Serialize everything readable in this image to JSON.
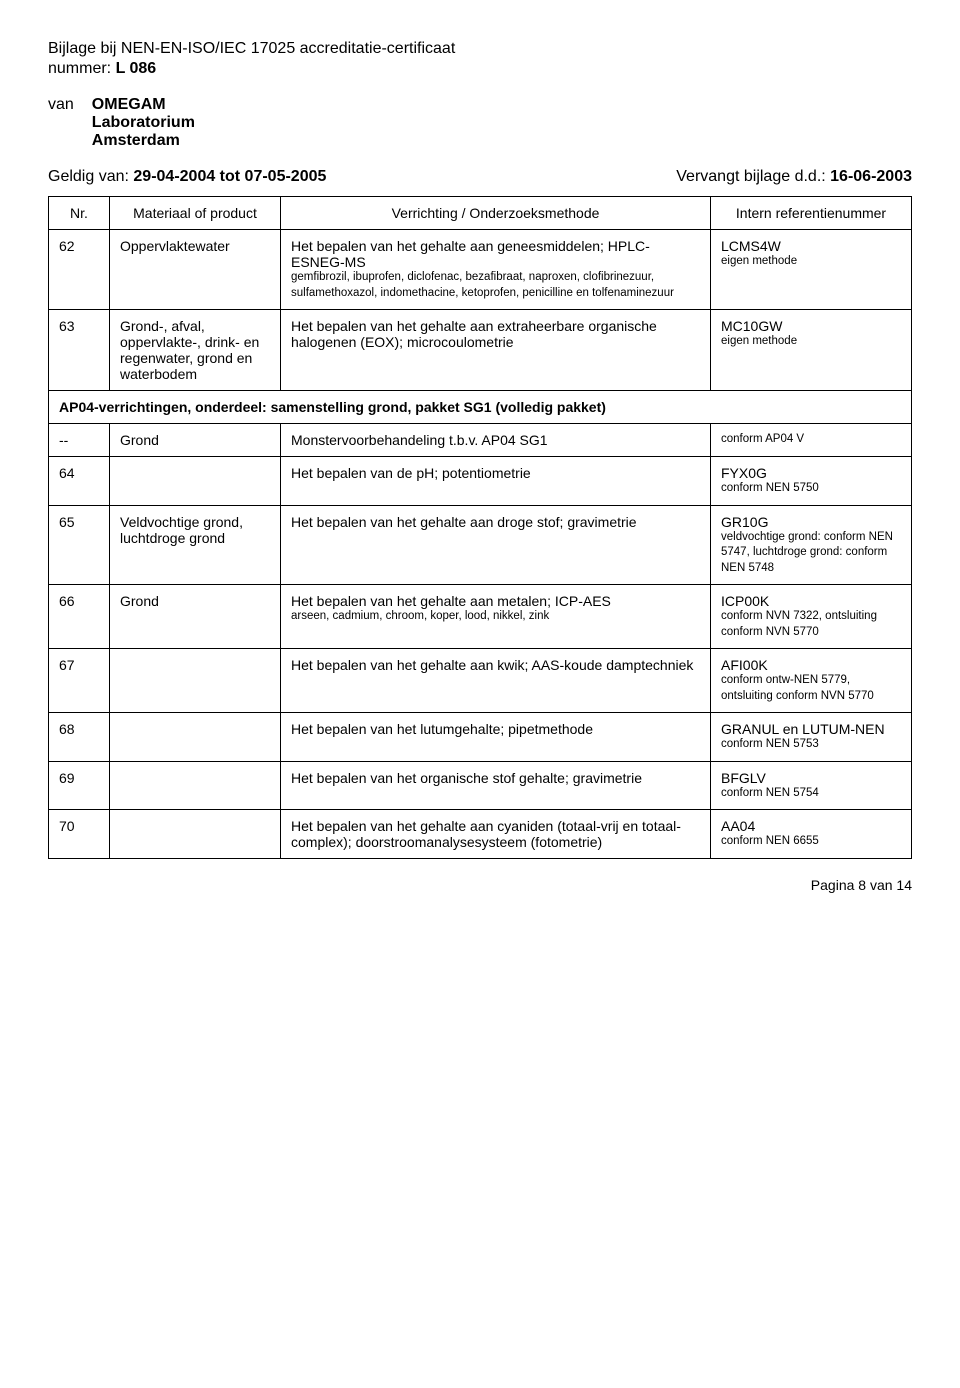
{
  "header": {
    "title": "Bijlage bij NEN-EN-ISO/IEC 17025 accreditatie-certificaat",
    "number_label": "nummer: ",
    "number_value": "L 086",
    "van_label": "van",
    "org_name": "OMEGAM",
    "org_line2": "Laboratorium",
    "org_line3": "Amsterdam",
    "valid_label": "Geldig van: ",
    "valid_value": "29-04-2004 tot 07-05-2005",
    "supersedes_label": "Vervangt bijlage d.d.: ",
    "supersedes_value": "16-06-2003"
  },
  "table": {
    "head": {
      "nr": "Nr.",
      "material": "Materiaal of product",
      "method": "Verrichting / Onderzoeksmethode",
      "ref": "Intern referentienummer"
    },
    "rows": {
      "r62": {
        "nr": "62",
        "material": "Oppervlaktewater",
        "method_main": "Het bepalen van het gehalte aan geneesmiddelen; HPLC-ESNEG-MS",
        "method_small": "gemfibrozil, ibuprofen, diclofenac, bezafibraat, naproxen, clofibrinezuur, sulfamethoxazol, indomethacine, ketoprofen, penicilline en tolfenaminezuur",
        "ref_main": "LCMS4W",
        "ref_small": "eigen methode"
      },
      "r63": {
        "nr": "63",
        "material": "Grond-, afval, oppervlakte-, drink- en regenwater, grond en waterbodem",
        "method_main": "Het bepalen van het gehalte aan extraheerbare organische halogenen (EOX); microcoulometrie",
        "ref_main": "MC10GW",
        "ref_small": "eigen methode"
      },
      "section": {
        "text": "AP04-verrichtingen, onderdeel: samenstelling grond, pakket SG1 (volledig pakket)"
      },
      "rDash": {
        "nr": "--",
        "material": "Grond",
        "method_main": "Monstervoorbehandeling t.b.v. AP04 SG1",
        "ref_small": "conform AP04 V"
      },
      "r64": {
        "nr": "64",
        "method_main": "Het bepalen van de pH; potentiometrie",
        "ref_main": "FYX0G",
        "ref_small": "conform NEN 5750"
      },
      "r65": {
        "nr": "65",
        "material": "Veldvochtige grond, luchtdroge grond",
        "method_main": "Het bepalen van het gehalte aan droge stof; gravimetrie",
        "ref_main": "GR10G",
        "ref_small": "veldvochtige grond: conform NEN 5747, luchtdroge grond: conform NEN 5748"
      },
      "r66": {
        "nr": "66",
        "material": "Grond",
        "method_main": "Het bepalen van het gehalte aan metalen; ICP-AES",
        "method_small": "arseen, cadmium, chroom, koper, lood, nikkel, zink",
        "ref_main": "ICP00K",
        "ref_small": "conform NVN 7322, ontsluiting conform NVN 5770"
      },
      "r67": {
        "nr": "67",
        "method_main": "Het bepalen van het gehalte aan kwik; AAS-koude damptechniek",
        "ref_main": "AFI00K",
        "ref_small": "conform ontw-NEN 5779, ontsluiting conform NVN 5770"
      },
      "r68": {
        "nr": "68",
        "method_main": "Het bepalen van het lutumgehalte; pipetmethode",
        "ref_main": "GRANUL en LUTUM-NEN",
        "ref_small": "conform NEN 5753"
      },
      "r69": {
        "nr": "69",
        "method_main": "Het bepalen van het organische stof gehalte; gravimetrie",
        "ref_main": "BFGLV",
        "ref_small": "conform NEN 5754"
      },
      "r70": {
        "nr": "70",
        "method_main": "Het bepalen van het gehalte aan cyaniden (totaal-vrij en totaal-complex); doorstroomanalysesysteem (fotometrie)",
        "ref_main": "AA04",
        "ref_small": "conform NEN 6655"
      }
    }
  },
  "footer": {
    "page": "Pagina 8 van 14"
  }
}
